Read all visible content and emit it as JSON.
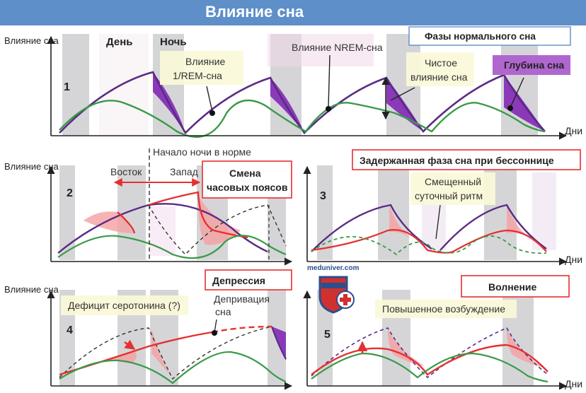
{
  "header": {
    "title": "Влияние сна"
  },
  "labels": {
    "y_axis": "Влияние сна",
    "x_axis": "Дни",
    "day": "День",
    "night": "Ночь",
    "rem_line1": "Влияние",
    "rem_line2": "1/REM-сна",
    "nrem": "Влияние NREM-сна",
    "pure_line1": "Чистое",
    "pure_line2": "влияние сна",
    "depth": "Глубина сна",
    "phases_title": "Фазы нормального сна",
    "night_start": "Начало ночи в норме",
    "east": "Восток",
    "west": "Запад",
    "tz_line1": "Смена",
    "tz_line2": "часовых поясов",
    "delayed_title": "Задержанная фаза сна при бессоннице",
    "shifted_line1": "Смещенный",
    "shifted_line2": "суточный ритм",
    "depression_title": "Депрессия",
    "serotonin": "Дефицит серотонина (?)",
    "deprivation_line1": "Депривация",
    "deprivation_line2": "сна",
    "worry_title": "Волнение",
    "arousal": "Повышенное возбуждение",
    "watermark": "meduniver.com"
  },
  "panels": [
    "1",
    "2",
    "3",
    "4",
    "5"
  ],
  "colors": {
    "header": "#5e8fc8",
    "nrem_line": "#5a2b84",
    "rem_line": "#3a9a48",
    "depth_fill": "#8a3ab9",
    "night_band": "#d5d5d8",
    "pink_fill": "#f5a0a0",
    "red_line": "#e53030",
    "callout_bg": "#fbf9d8",
    "title_border": "#e53030"
  }
}
